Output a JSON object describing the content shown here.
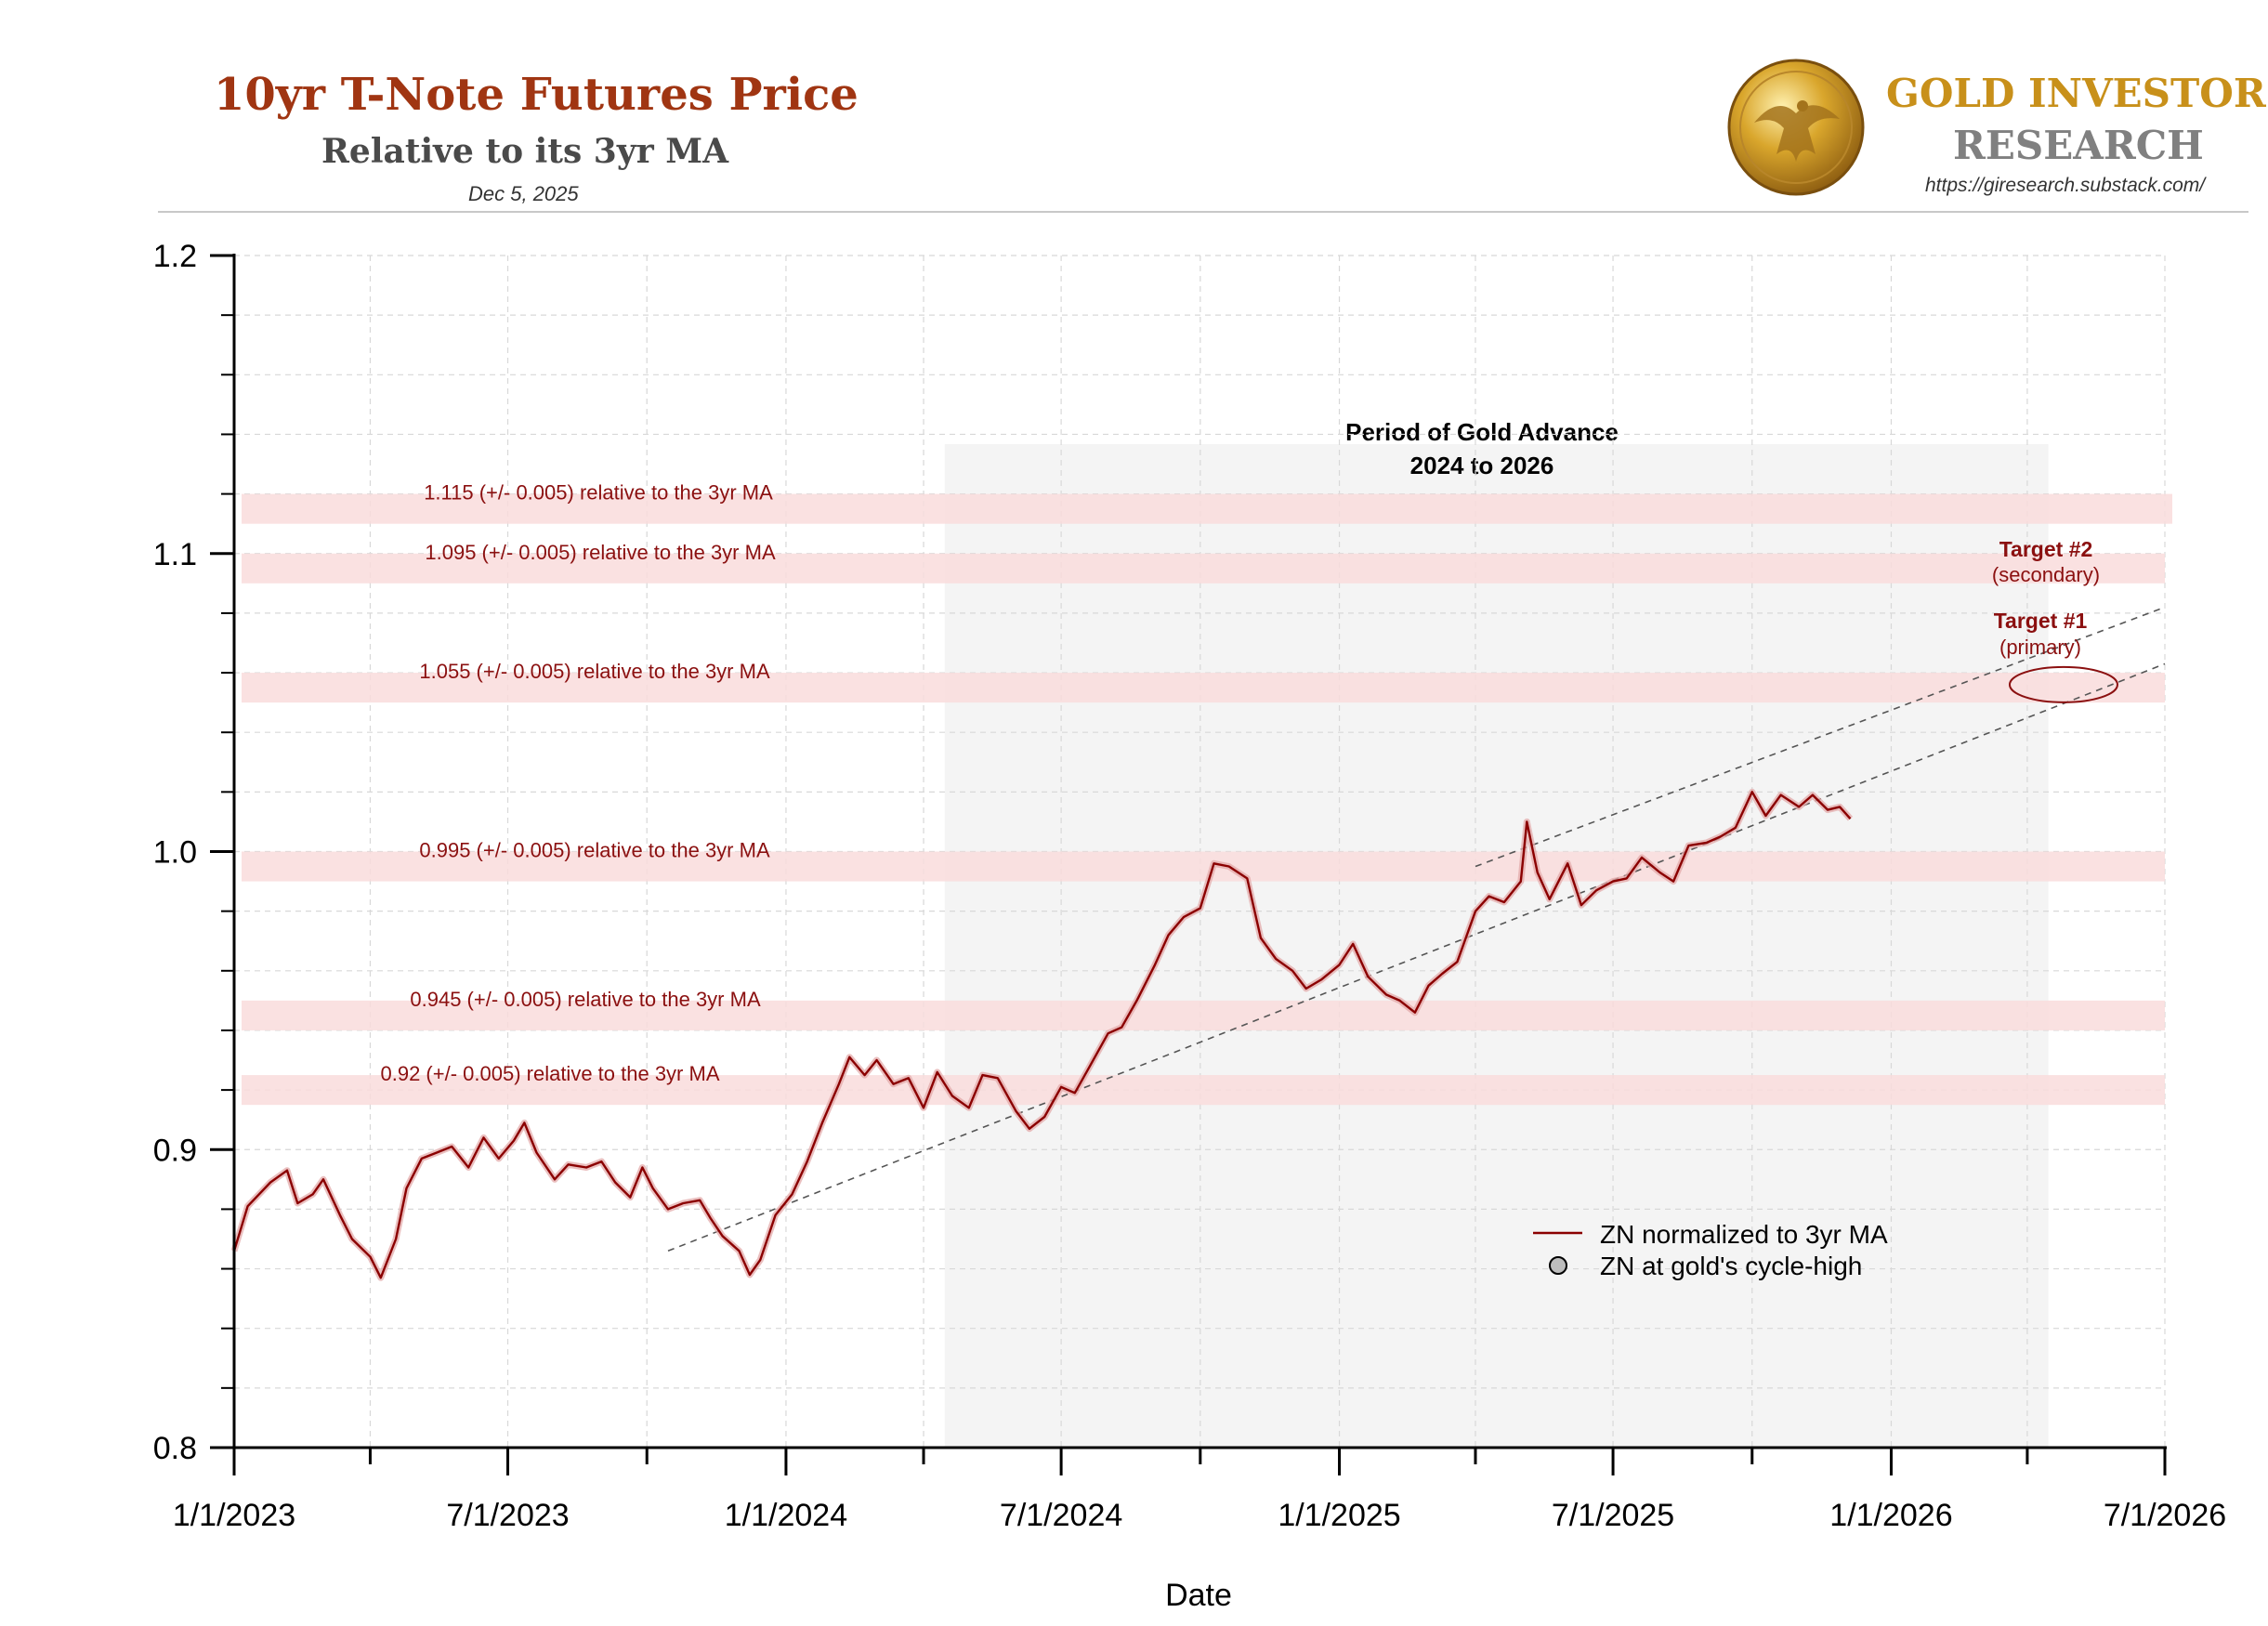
{
  "header": {
    "title": "10yr T-Note Futures Price",
    "subtitle": "Relative to its 3yr MA",
    "date": "Dec 5, 2025"
  },
  "brand": {
    "line1": "GOLD INVESTOR",
    "line2": "RESEARCH",
    "url": "https://giresearch.substack.com/",
    "logo_icon": "gold-eagle-coin-icon"
  },
  "colors": {
    "title": "#a03512",
    "series": "#8b0000",
    "band": "#f9dcdc",
    "band_label": "#8b1010",
    "target": "#8b1010",
    "region": "#f4f4f4"
  },
  "chart_data": {
    "type": "line",
    "xlabel": "Date",
    "ylabel": "",
    "x_ticks": [
      "1/1/2023",
      "7/1/2023",
      "1/1/2024",
      "7/1/2024",
      "1/1/2025",
      "7/1/2025",
      "1/1/2026",
      "7/1/2026"
    ],
    "xlim": [
      "2023-01-01",
      "2026-07-01"
    ],
    "ylim": [
      0.8,
      1.2
    ],
    "y_ticks": [
      "0.8",
      "0.9",
      "1.0",
      "1.1",
      "1.2"
    ],
    "grid": true,
    "shaded_region": {
      "label_line1": "Period of Gold Advance",
      "label_line2": "2024 to 2026",
      "x": [
        "2024-04-15",
        "2026-04-15"
      ]
    },
    "bands": [
      {
        "y": 1.115,
        "label": "1.115 (+/- 0.005) relative to the 3yr MA"
      },
      {
        "y": 1.095,
        "label": "1.095 (+/- 0.005) relative to the 3yr MA"
      },
      {
        "y": 1.055,
        "label": "1.055 (+/- 0.005) relative to the 3yr MA"
      },
      {
        "y": 0.995,
        "label": "0.995 (+/- 0.005) relative to the 3yr MA"
      },
      {
        "y": 0.945,
        "label": "0.945 (+/- 0.005) relative to the 3yr MA"
      },
      {
        "y": 0.92,
        "label": "0.92 (+/- 0.005) relative to the 3yr MA"
      }
    ],
    "trend_lines": [
      {
        "from": [
          "2023-10-15",
          0.866
        ],
        "to": [
          "2026-07-01",
          1.063
        ]
      },
      {
        "from": [
          "2025-04-01",
          0.995
        ],
        "to": [
          "2026-07-01",
          1.082
        ]
      }
    ],
    "targets": [
      {
        "title": "Target #2",
        "note": "(secondary)"
      },
      {
        "title": "Target #1",
        "note": "(primary)",
        "ellipse_center": [
          "2026-04-25",
          1.056
        ]
      }
    ],
    "legend": {
      "position": "lower-right",
      "entries": [
        "ZN normalized to 3yr MA",
        "ZN at gold's cycle-high"
      ]
    },
    "series": [
      {
        "name": "ZN normalized to 3yr MA",
        "points": [
          [
            "2023-01-01",
            0.866
          ],
          [
            "2023-01-10",
            0.881
          ],
          [
            "2023-01-25",
            0.889
          ],
          [
            "2023-02-05",
            0.893
          ],
          [
            "2023-02-12",
            0.882
          ],
          [
            "2023-02-22",
            0.885
          ],
          [
            "2023-03-01",
            0.89
          ],
          [
            "2023-03-12",
            0.878
          ],
          [
            "2023-03-20",
            0.87
          ],
          [
            "2023-04-01",
            0.864
          ],
          [
            "2023-04-08",
            0.857
          ],
          [
            "2023-04-18",
            0.87
          ],
          [
            "2023-04-25",
            0.887
          ],
          [
            "2023-05-05",
            0.897
          ],
          [
            "2023-05-15",
            0.899
          ],
          [
            "2023-05-25",
            0.901
          ],
          [
            "2023-06-05",
            0.894
          ],
          [
            "2023-06-15",
            0.904
          ],
          [
            "2023-06-25",
            0.897
          ],
          [
            "2023-07-05",
            0.903
          ],
          [
            "2023-07-12",
            0.909
          ],
          [
            "2023-07-20",
            0.899
          ],
          [
            "2023-08-01",
            0.89
          ],
          [
            "2023-08-10",
            0.895
          ],
          [
            "2023-08-22",
            0.894
          ],
          [
            "2023-09-01",
            0.896
          ],
          [
            "2023-09-10",
            0.889
          ],
          [
            "2023-09-20",
            0.884
          ],
          [
            "2023-09-28",
            0.894
          ],
          [
            "2023-10-05",
            0.887
          ],
          [
            "2023-10-15",
            0.88
          ],
          [
            "2023-10-25",
            0.882
          ],
          [
            "2023-11-05",
            0.883
          ],
          [
            "2023-11-12",
            0.877
          ],
          [
            "2023-11-20",
            0.871
          ],
          [
            "2023-12-01",
            0.866
          ],
          [
            "2023-12-08",
            0.858
          ],
          [
            "2023-12-15",
            0.863
          ],
          [
            "2023-12-25",
            0.878
          ],
          [
            "2024-01-05",
            0.885
          ],
          [
            "2024-01-15",
            0.896
          ],
          [
            "2024-01-25",
            0.909
          ],
          [
            "2024-02-05",
            0.922
          ],
          [
            "2024-02-12",
            0.931
          ],
          [
            "2024-02-22",
            0.925
          ],
          [
            "2024-03-01",
            0.93
          ],
          [
            "2024-03-12",
            0.922
          ],
          [
            "2024-03-22",
            0.924
          ],
          [
            "2024-04-01",
            0.914
          ],
          [
            "2024-04-10",
            0.926
          ],
          [
            "2024-04-20",
            0.918
          ],
          [
            "2024-05-01",
            0.914
          ],
          [
            "2024-05-10",
            0.925
          ],
          [
            "2024-05-20",
            0.924
          ],
          [
            "2024-06-01",
            0.913
          ],
          [
            "2024-06-10",
            0.907
          ],
          [
            "2024-06-20",
            0.911
          ],
          [
            "2024-07-01",
            0.921
          ],
          [
            "2024-07-10",
            0.919
          ],
          [
            "2024-07-20",
            0.928
          ],
          [
            "2024-08-01",
            0.939
          ],
          [
            "2024-08-10",
            0.941
          ],
          [
            "2024-08-20",
            0.95
          ],
          [
            "2024-09-01",
            0.962
          ],
          [
            "2024-09-10",
            0.972
          ],
          [
            "2024-09-20",
            0.978
          ],
          [
            "2024-10-01",
            0.981
          ],
          [
            "2024-10-10",
            0.996
          ],
          [
            "2024-10-20",
            0.995
          ],
          [
            "2024-11-01",
            0.991
          ],
          [
            "2024-11-10",
            0.971
          ],
          [
            "2024-11-20",
            0.964
          ],
          [
            "2024-12-01",
            0.96
          ],
          [
            "2024-12-10",
            0.954
          ],
          [
            "2024-12-20",
            0.957
          ],
          [
            "2025-01-01",
            0.962
          ],
          [
            "2025-01-10",
            0.969
          ],
          [
            "2025-01-20",
            0.958
          ],
          [
            "2025-02-01",
            0.952
          ],
          [
            "2025-02-10",
            0.95
          ],
          [
            "2025-02-20",
            0.946
          ],
          [
            "2025-03-01",
            0.955
          ],
          [
            "2025-03-10",
            0.959
          ],
          [
            "2025-03-20",
            0.963
          ],
          [
            "2025-04-01",
            0.98
          ],
          [
            "2025-04-10",
            0.985
          ],
          [
            "2025-04-20",
            0.983
          ],
          [
            "2025-05-01",
            0.99
          ],
          [
            "2025-05-05",
            1.01
          ],
          [
            "2025-05-12",
            0.993
          ],
          [
            "2025-05-20",
            0.984
          ],
          [
            "2025-06-01",
            0.996
          ],
          [
            "2025-06-10",
            0.982
          ],
          [
            "2025-06-20",
            0.987
          ],
          [
            "2025-07-01",
            0.99
          ],
          [
            "2025-07-10",
            0.991
          ],
          [
            "2025-07-20",
            0.998
          ],
          [
            "2025-08-01",
            0.993
          ],
          [
            "2025-08-10",
            0.99
          ],
          [
            "2025-08-20",
            1.002
          ],
          [
            "2025-09-01",
            1.003
          ],
          [
            "2025-09-10",
            1.005
          ],
          [
            "2025-09-20",
            1.008
          ],
          [
            "2025-10-01",
            1.02
          ],
          [
            "2025-10-10",
            1.012
          ],
          [
            "2025-10-20",
            1.019
          ],
          [
            "2025-11-01",
            1.015
          ],
          [
            "2025-11-10",
            1.019
          ],
          [
            "2025-11-20",
            1.014
          ],
          [
            "2025-11-28",
            1.015
          ],
          [
            "2025-12-05",
            1.011
          ]
        ]
      }
    ]
  }
}
